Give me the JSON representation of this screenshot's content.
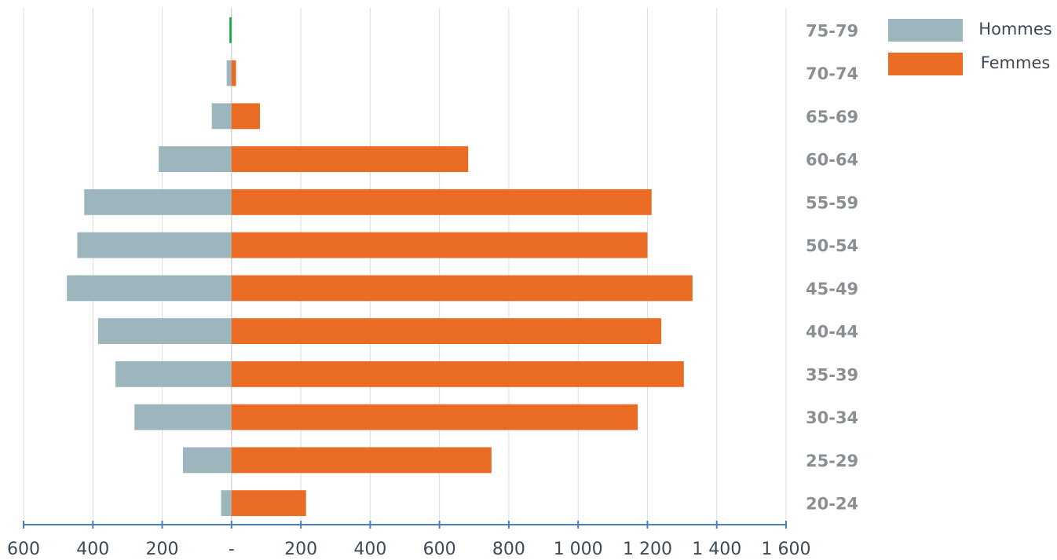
{
  "chart_data": {
    "type": "bar",
    "orientation": "horizontal",
    "layout": "population-pyramid",
    "categories": [
      "20-24",
      "25-29",
      "30-34",
      "35-39",
      "40-44",
      "45-49",
      "50-54",
      "55-59",
      "60-64",
      "65-69",
      "70-74",
      "75-79"
    ],
    "series": [
      {
        "name": "Hommes",
        "color": "#9db5bd",
        "direction": "left",
        "values": [
          30,
          140,
          280,
          335,
          385,
          475,
          445,
          425,
          210,
          57,
          14,
          6
        ]
      },
      {
        "name": "Femmes",
        "color": "#ea6b24",
        "direction": "right",
        "values": [
          215,
          750,
          1172,
          1305,
          1240,
          1330,
          1200,
          1212,
          683,
          82,
          13,
          0
        ]
      }
    ],
    "highlight": {
      "category": "75-79",
      "color": "#17a34a"
    },
    "xlim": [
      -600,
      1600
    ],
    "x_ticks": [
      "600",
      "400",
      "200",
      "-",
      "200",
      "400",
      "600",
      "800",
      "1 000",
      "1 200",
      "1 400",
      "1 600"
    ],
    "legend_position": "top-right",
    "grid": true
  }
}
